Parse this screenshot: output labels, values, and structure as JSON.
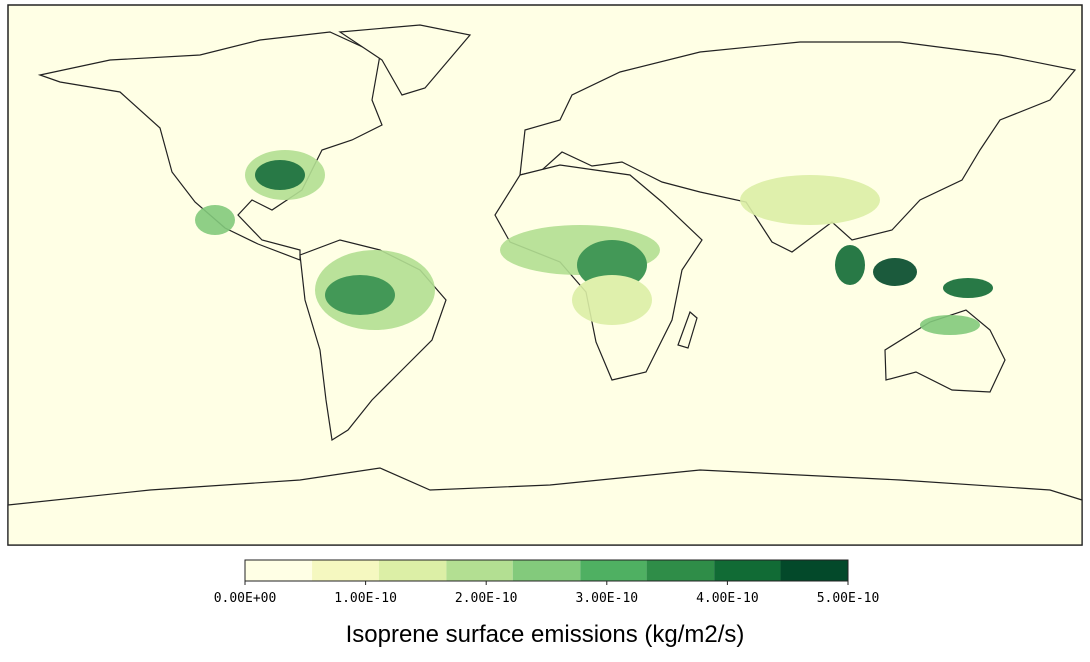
{
  "colorbar": {
    "label": "Isoprene surface emissions (kg/m2/s)",
    "levels": [
      0,
      5.56e-11,
      1.11e-10,
      1.67e-10,
      2.22e-10,
      2.78e-10,
      3.33e-10,
      3.89e-10,
      4.44e-10,
      5e-10
    ],
    "colors": [
      "#ffffe5",
      "#f5f8c0",
      "#dcefa6",
      "#b3df92",
      "#83ca7c",
      "#4fb062",
      "#2f8d48",
      "#116b35",
      "#03492a"
    ],
    "lim": [
      0,
      5e-10
    ],
    "ticks": [
      {
        "value": 0,
        "label": "0.00E+00"
      },
      {
        "value": 1e-10,
        "label": "1.00E-10"
      },
      {
        "value": 2e-10,
        "label": "2.00E-10"
      },
      {
        "value": 3e-10,
        "label": "3.00E-10"
      },
      {
        "value": 4e-10,
        "label": "4.00E-10"
      },
      {
        "value": 5e-10,
        "label": "5.00E-10"
      }
    ]
  }
}
